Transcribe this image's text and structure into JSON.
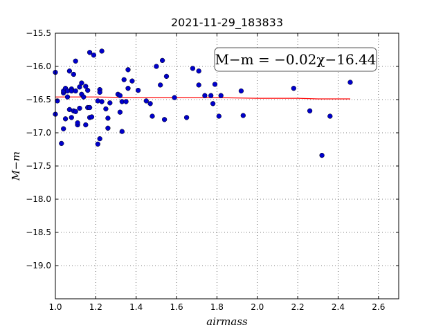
{
  "chart_data": {
    "type": "scatter",
    "title": "2021-11-29_183833",
    "xlabel": "airmass",
    "ylabel": "M−m",
    "xlim": [
      1.0,
      2.7
    ],
    "ylim": [
      -15.5,
      -19.5
    ],
    "y_inverted": true,
    "grid": true,
    "x_ticks": [
      1.0,
      1.2,
      1.4,
      1.6,
      1.8,
      2.0,
      2.2,
      2.4,
      2.6
    ],
    "x_tick_labels": [
      "1.0",
      "1.2",
      "1.4",
      "1.6",
      "1.8",
      "2.0",
      "2.2",
      "2.4",
      "2.6"
    ],
    "y_ticks": [
      -15.5,
      -16.0,
      -16.5,
      -17.0,
      -17.5,
      -18.0,
      -18.5,
      -19.0
    ],
    "y_tick_labels": [
      "−15.5",
      "−16.0",
      "−16.5",
      "−17.0",
      "−17.5",
      "−18.0",
      "−18.5",
      "−19.0"
    ],
    "annotation": "M−m = −0.02χ−16.44",
    "colors": {
      "points": "#0000cc",
      "fit": "#ff0000",
      "grid": "#b0b0b0"
    },
    "series": [
      {
        "type": "scatter",
        "points": [
          [
            1.0,
            -16.09
          ],
          [
            1.0,
            -16.72
          ],
          [
            1.01,
            -16.52
          ],
          [
            1.03,
            -17.16
          ],
          [
            1.04,
            -16.94
          ],
          [
            1.04,
            -16.4
          ],
          [
            1.04,
            -16.37
          ],
          [
            1.05,
            -16.79
          ],
          [
            1.05,
            -16.33
          ],
          [
            1.06,
            -16.46
          ],
          [
            1.06,
            -16.37
          ],
          [
            1.07,
            -16.07
          ],
          [
            1.07,
            -16.65
          ],
          [
            1.08,
            -16.34
          ],
          [
            1.08,
            -16.77
          ],
          [
            1.08,
            -16.37
          ],
          [
            1.09,
            -16.12
          ],
          [
            1.09,
            -16.67
          ],
          [
            1.1,
            -16.37
          ],
          [
            1.1,
            -16.68
          ],
          [
            1.1,
            -15.92
          ],
          [
            1.11,
            -16.88
          ],
          [
            1.11,
            -16.85
          ],
          [
            1.12,
            -16.63
          ],
          [
            1.12,
            -16.31
          ],
          [
            1.13,
            -16.25
          ],
          [
            1.13,
            -16.42
          ],
          [
            1.14,
            -16.46
          ],
          [
            1.15,
            -16.3
          ],
          [
            1.15,
            -16.88
          ],
          [
            1.16,
            -16.36
          ],
          [
            1.16,
            -16.62
          ],
          [
            1.17,
            -15.79
          ],
          [
            1.17,
            -16.77
          ],
          [
            1.17,
            -16.62
          ],
          [
            1.18,
            -16.76
          ],
          [
            1.19,
            -15.83
          ],
          [
            1.21,
            -17.17
          ],
          [
            1.21,
            -16.52
          ],
          [
            1.22,
            -17.09
          ],
          [
            1.22,
            -16.35
          ],
          [
            1.23,
            -15.77
          ],
          [
            1.23,
            -16.53
          ],
          [
            1.22,
            -16.39
          ],
          [
            1.25,
            -16.64
          ],
          [
            1.26,
            -16.93
          ],
          [
            1.26,
            -16.78
          ],
          [
            1.27,
            -16.55
          ],
          [
            1.31,
            -16.42
          ],
          [
            1.32,
            -16.44
          ],
          [
            1.32,
            -16.69
          ],
          [
            1.33,
            -16.53
          ],
          [
            1.33,
            -16.98
          ],
          [
            1.34,
            -16.2
          ],
          [
            1.35,
            -16.53
          ],
          [
            1.36,
            -16.05
          ],
          [
            1.36,
            -16.33
          ],
          [
            1.38,
            -16.22
          ],
          [
            1.41,
            -16.36
          ],
          [
            1.45,
            -16.52
          ],
          [
            1.47,
            -16.56
          ],
          [
            1.48,
            -16.75
          ],
          [
            1.5,
            -16.0
          ],
          [
            1.52,
            -16.28
          ],
          [
            1.53,
            -15.91
          ],
          [
            1.54,
            -16.8
          ],
          [
            1.55,
            -16.15
          ],
          [
            1.59,
            -16.47
          ],
          [
            1.65,
            -16.77
          ],
          [
            1.68,
            -16.03
          ],
          [
            1.71,
            -16.07
          ],
          [
            1.71,
            -16.28
          ],
          [
            1.74,
            -16.44
          ],
          [
            1.77,
            -16.44
          ],
          [
            1.78,
            -16.56
          ],
          [
            1.79,
            -16.27
          ],
          [
            1.81,
            -16.75
          ],
          [
            1.82,
            -16.44
          ],
          [
            1.92,
            -16.37
          ],
          [
            1.93,
            -16.74
          ],
          [
            2.18,
            -16.33
          ],
          [
            2.26,
            -16.67
          ],
          [
            2.32,
            -17.34
          ],
          [
            2.36,
            -16.75
          ],
          [
            2.46,
            -16.24
          ]
        ]
      },
      {
        "type": "line",
        "points": [
          [
            1.0,
            -16.46
          ],
          [
            1.2,
            -16.46
          ],
          [
            1.4,
            -16.47
          ],
          [
            1.6,
            -16.47
          ],
          [
            1.8,
            -16.47
          ],
          [
            2.0,
            -16.48
          ],
          [
            2.2,
            -16.48
          ],
          [
            2.3,
            -16.49
          ],
          [
            2.46,
            -16.49
          ]
        ]
      }
    ]
  }
}
